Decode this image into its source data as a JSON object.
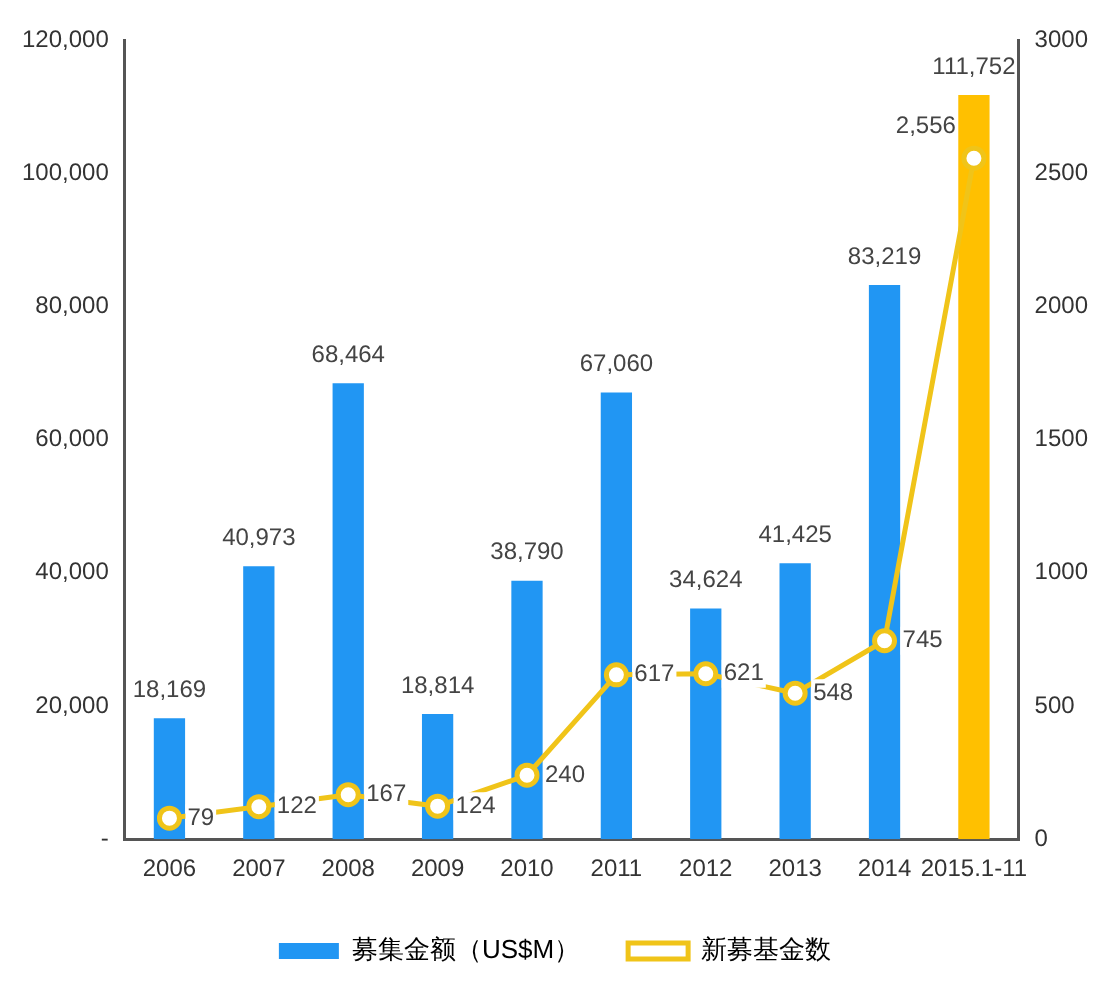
{
  "chart_data": {
    "type": "bar",
    "categories": [
      "2006",
      "2007",
      "2008",
      "2009",
      "2010",
      "2011",
      "2012",
      "2013",
      "2014",
      "2015.1-11"
    ],
    "series": [
      {
        "name": "募集金额（US$M）",
        "color": "#2196f3",
        "colors": [
          "#2196f3",
          "#2196f3",
          "#2196f3",
          "#2196f3",
          "#2196f3",
          "#2196f3",
          "#2196f3",
          "#2196f3",
          "#2196f3",
          "#ffc000"
        ],
        "values": [
          18169,
          40973,
          68464,
          18814,
          38790,
          67060,
          34624,
          41425,
          83219,
          111752
        ],
        "value_labels": [
          "18,169",
          "40,973",
          "68,464",
          "18,814",
          "38,790",
          "67,060",
          "34,624",
          "41,425",
          "83,219",
          "111,752"
        ]
      },
      {
        "name": "新募基金数",
        "type": "line",
        "axis": "y2",
        "color": "#f0c419",
        "values": [
          79,
          122,
          167,
          124,
          240,
          617,
          621,
          548,
          745,
          2556
        ],
        "value_labels": [
          "79",
          "122",
          "167",
          "124",
          "240",
          "617",
          "621",
          "548",
          "745",
          "2,556"
        ]
      }
    ],
    "ylim": [
      0,
      120000
    ],
    "yticks": [
      {
        "value": 0,
        "label": "-"
      },
      {
        "value": 20000,
        "label": "20,000"
      },
      {
        "value": 40000,
        "label": "40,000"
      },
      {
        "value": 60000,
        "label": "60,000"
      },
      {
        "value": 80000,
        "label": "80,000"
      },
      {
        "value": 100000,
        "label": "100,000"
      },
      {
        "value": 120000,
        "label": "120,000"
      }
    ],
    "y2lim": [
      0,
      3000
    ],
    "y2ticks": [
      0,
      500,
      1000,
      1500,
      2000,
      2500,
      3000
    ],
    "grid": false,
    "legend": "bottom",
    "marker": "circle"
  }
}
